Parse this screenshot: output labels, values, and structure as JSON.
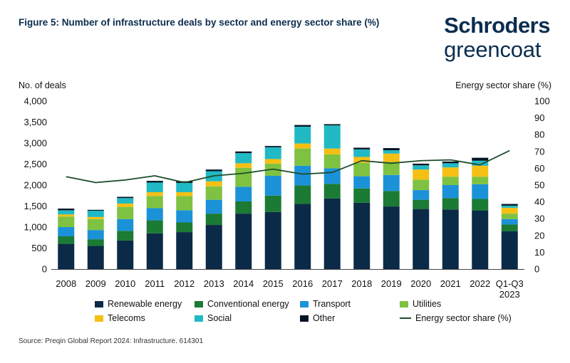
{
  "header": {
    "title": "Figure 5: Number of infrastructure deals by sector and energy sector share (%)",
    "brand_line1": "Schroders",
    "brand_line2": "greencoat"
  },
  "source": "Source: Preqin Global Report 2024: Infrastructure. 614301",
  "colors": {
    "renewable": "#0b2a48",
    "conventional": "#1b7a34",
    "transport": "#1b92d8",
    "utilities": "#7fc241",
    "telecoms": "#f5bf14",
    "social": "#21b9c4",
    "other": "#041526",
    "line": "#1e4d2b"
  },
  "chart_data": {
    "type": "bar",
    "stacked": true,
    "ylabel": "No. of deals",
    "y2label": "Energy sector share (%)",
    "ylim": [
      0,
      4000
    ],
    "y2lim": [
      0,
      100
    ],
    "yticks": [
      "0",
      "500",
      "1,000",
      "1,500",
      "2,000",
      "2,500",
      "3,000",
      "3,500",
      "4,000"
    ],
    "y2ticks": [
      "0",
      "10",
      "20",
      "30",
      "40",
      "50",
      "60",
      "70",
      "80",
      "90",
      "100"
    ],
    "categories": [
      "2008",
      "2009",
      "2010",
      "2011",
      "2012",
      "2013",
      "2014",
      "2015",
      "2016",
      "2017",
      "2018",
      "2019",
      "2020",
      "2021",
      "2022",
      "Q1-Q3 2023"
    ],
    "series": [
      {
        "key": "renewable",
        "name": "Renewable energy",
        "values": [
          600,
          550,
          680,
          850,
          880,
          1050,
          1320,
          1360,
          1550,
          1680,
          1580,
          1490,
          1430,
          1420,
          1390,
          900
        ]
      },
      {
        "key": "conventional",
        "name": "Conventional energy",
        "values": [
          180,
          160,
          230,
          310,
          230,
          270,
          290,
          390,
          440,
          350,
          340,
          370,
          220,
          270,
          280,
          160
        ]
      },
      {
        "key": "transport",
        "name": "Transport",
        "values": [
          220,
          220,
          280,
          290,
          290,
          330,
          350,
          470,
          470,
          370,
          290,
          380,
          230,
          310,
          350,
          130
        ]
      },
      {
        "key": "utilities",
        "name": "Utilities",
        "values": [
          250,
          260,
          290,
          290,
          340,
          320,
          450,
          290,
          410,
          330,
          320,
          310,
          250,
          200,
          180,
          130
        ]
      },
      {
        "key": "telecoms",
        "name": "Telecoms",
        "values": [
          50,
          50,
          80,
          90,
          90,
          120,
          110,
          110,
          120,
          140,
          140,
          200,
          240,
          220,
          260,
          140
        ]
      },
      {
        "key": "social",
        "name": "Social",
        "values": [
          100,
          150,
          130,
          230,
          220,
          240,
          240,
          280,
          400,
          550,
          180,
          80,
          100,
          100,
          120,
          50
        ]
      },
      {
        "key": "other",
        "name": "Other",
        "values": [
          40,
          20,
          30,
          40,
          40,
          40,
          40,
          30,
          40,
          30,
          40,
          50,
          40,
          40,
          70,
          40
        ]
      }
    ],
    "line_series": {
      "key": "line",
      "name": "Energy sector share (%)",
      "values": [
        55,
        51.5,
        53,
        55.5,
        51.5,
        55.5,
        57,
        59.5,
        56.5,
        57.5,
        64.5,
        63,
        64.5,
        65,
        62,
        70.5
      ]
    }
  }
}
